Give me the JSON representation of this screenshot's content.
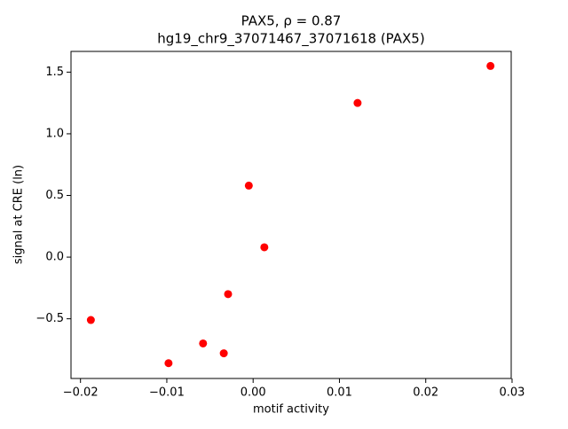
{
  "chart_data": {
    "type": "scatter",
    "title": "PAX5, ρ = 0.87",
    "subtitle": "hg19_chr9_37071467_37071618 (PAX5)",
    "x_label": "motif activity",
    "y_label": "signal at CRE (ln)",
    "series": [
      {
        "color": "#ff0000",
        "x": [
          0.0275,
          0.0121,
          -0.0005,
          0.0013,
          -0.0029,
          -0.0188,
          -0.0058,
          -0.0034,
          -0.0098
        ],
        "values": [
          1.55,
          1.25,
          0.58,
          0.08,
          -0.3,
          -0.51,
          -0.7,
          -0.78,
          -0.86
        ]
      }
    ],
    "xlim": [
      -0.0211,
      0.0299
    ],
    "ylim": [
      -0.984,
      1.668
    ],
    "xticks": [
      {
        "value": -0.02,
        "label": "−0.02"
      },
      {
        "value": -0.01,
        "label": "−0.01"
      },
      {
        "value": 0,
        "label": "0.00"
      },
      0.01,
      0.02,
      0.03
    ],
    "yticks": [
      {
        "value": -0.5,
        "label": "−0.5"
      },
      {
        "value": 0,
        "label": "0.0"
      },
      0.5,
      {
        "value": 1,
        "label": "1.0"
      },
      1.5
    ],
    "grid": false
  }
}
